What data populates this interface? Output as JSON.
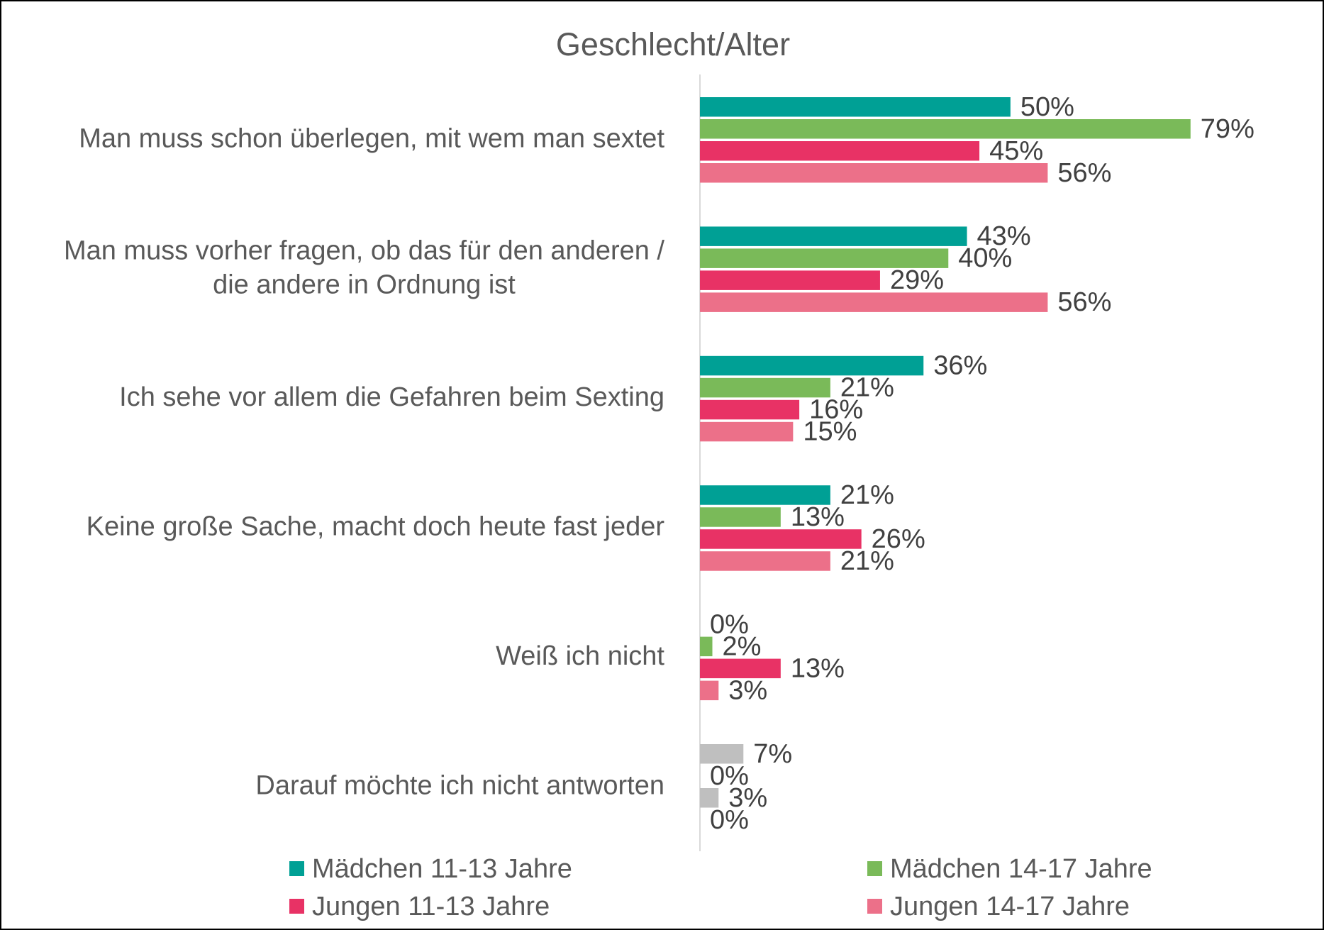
{
  "chart_data": {
    "type": "bar",
    "orientation": "horizontal",
    "title": "Geschlecht/Alter",
    "categories": [
      "Man muss schon überlegen, mit wem man sextet",
      "Man muss vorher fragen, ob das für den anderen / die andere in Ordnung ist",
      "Ich sehe vor allem die Gefahren beim Sexting",
      "Keine große Sache, macht doch heute fast jeder",
      "Weiß ich nicht",
      "Darauf möchte ich nicht antworten"
    ],
    "xlim": [
      0,
      100
    ],
    "legend": "bottom",
    "series": [
      {
        "name": "Mädchen 11-13 Jahre",
        "color": "#00a095",
        "colors": [
          "#00a095",
          "#00a095",
          "#00a095",
          "#00a095",
          "#00a095",
          "#bfbfbf"
        ],
        "values": [
          50,
          43,
          36,
          21,
          0,
          7
        ],
        "value_labels": [
          "50%",
          "43%",
          "36%",
          "21%",
          "0%",
          "7%"
        ]
      },
      {
        "name": "Mädchen 14-17 Jahre",
        "color": "#7aba59",
        "colors": [
          "#7aba59",
          "#7aba59",
          "#7aba59",
          "#7aba59",
          "#7aba59",
          "#bfbfbf"
        ],
        "values": [
          79,
          40,
          21,
          13,
          2,
          0
        ],
        "value_labels": [
          "79%",
          "40%",
          "21%",
          "13%",
          "2%",
          "0%"
        ]
      },
      {
        "name": "Jungen 11-13 Jahre",
        "color": "#e83265",
        "colors": [
          "#e83265",
          "#e83265",
          "#e83265",
          "#e83265",
          "#e83265",
          "#bfbfbf"
        ],
        "values": [
          45,
          29,
          16,
          26,
          13,
          3
        ],
        "value_labels": [
          "45%",
          "29%",
          "16%",
          "26%",
          "13%",
          "3%"
        ]
      },
      {
        "name": "Jungen 14-17 Jahre",
        "color": "#ec7089",
        "colors": [
          "#ec7089",
          "#ec7089",
          "#ec7089",
          "#ec7089",
          "#ec7089",
          "#bfbfbf"
        ],
        "values": [
          56,
          56,
          15,
          21,
          3,
          0
        ],
        "value_labels": [
          "56%",
          "56%",
          "15%",
          "21%",
          "3%",
          "0%"
        ]
      }
    ]
  }
}
